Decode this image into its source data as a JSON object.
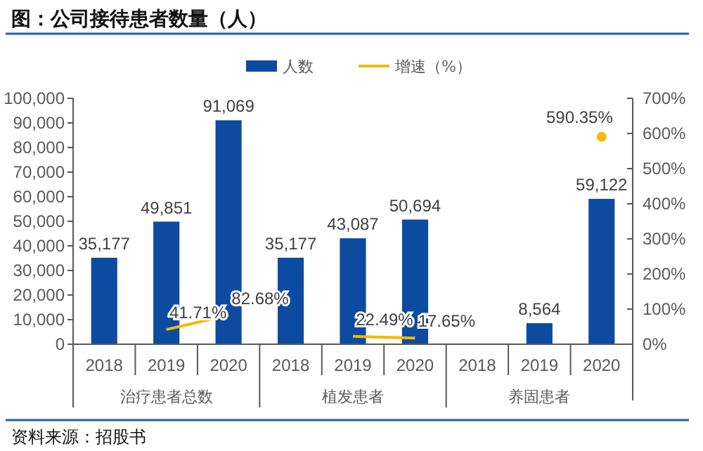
{
  "chart_data": {
    "type": "bar",
    "title": "图：公司接待患者数量（人）",
    "categories": [
      "2018",
      "2019",
      "2020",
      "2018",
      "2019",
      "2020",
      "2018",
      "2019",
      "2020"
    ],
    "series": [
      {
        "name": "人数",
        "color": "#0d4ba0",
        "values": [
          35177,
          49851,
          91069,
          35177,
          43087,
          50694,
          null,
          8564,
          59122
        ],
        "value_labels": [
          "35,177",
          "49,851",
          "91,069",
          "35,177",
          "43,087",
          "50,694",
          null,
          "8,564",
          "59,122"
        ]
      },
      {
        "name": "增速（%）",
        "type": "line",
        "axis": "y2",
        "color": "#f5b800",
        "values": [
          null,
          41.71,
          82.68,
          null,
          22.49,
          17.65,
          null,
          null,
          590.35
        ],
        "value_labels": [
          null,
          "41.71%",
          "82.68%",
          null,
          "22.49%",
          "17.65%",
          null,
          null,
          "590.35%"
        ]
      }
    ],
    "ylim": [
      0,
      100000
    ],
    "yticks": [
      {
        "value": 0,
        "label": "0"
      },
      {
        "value": 10000,
        "label": "10,000"
      },
      {
        "value": 20000,
        "label": "20,000"
      },
      {
        "value": 30000,
        "label": "30,000"
      },
      {
        "value": 40000,
        "label": "40,000"
      },
      {
        "value": 50000,
        "label": "50,000"
      },
      {
        "value": 60000,
        "label": "60,000"
      },
      {
        "value": 70000,
        "label": "70,000"
      },
      {
        "value": 80000,
        "label": "80,000"
      },
      {
        "value": 90000,
        "label": "90,000"
      },
      {
        "value": 100000,
        "label": "100,000"
      }
    ],
    "y2lim": [
      0,
      700
    ],
    "y2ticks": [
      {
        "value": 0,
        "label": "0%"
      },
      {
        "value": 100,
        "label": "100%"
      },
      {
        "value": 200,
        "label": "200%"
      },
      {
        "value": 300,
        "label": "300%"
      },
      {
        "value": 400,
        "label": "400%"
      },
      {
        "value": 500,
        "label": "500%"
      },
      {
        "value": 600,
        "label": "600%"
      },
      {
        "value": 700,
        "label": "700%"
      }
    ],
    "annotations": [
      "治疗患者总数",
      "植发患者",
      "养固患者",
      "资料来源：招股书"
    ],
    "legend": "top right",
    "grid": false
  }
}
